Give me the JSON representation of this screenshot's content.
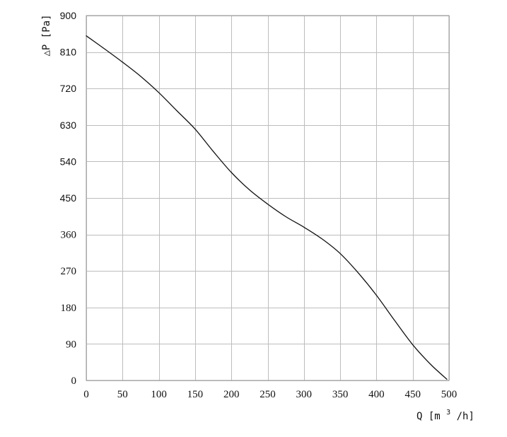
{
  "chart_data": {
    "type": "line",
    "title": "",
    "xlabel": "Q [m³/h]",
    "ylabel": "△P [Pa]",
    "xlabel_parts": {
      "prefix": "Q [m",
      "superscript": "3",
      "suffix": "/h]"
    },
    "xlim": [
      0,
      500
    ],
    "ylim": [
      0,
      900
    ],
    "x_ticks": [
      0,
      50,
      100,
      150,
      200,
      250,
      300,
      350,
      400,
      450,
      500
    ],
    "y_ticks": [
      0,
      90,
      180,
      270,
      360,
      450,
      540,
      630,
      720,
      810,
      900
    ],
    "x_tick_labels": [
      "0",
      "50",
      "100",
      "150",
      "200",
      "250",
      "300",
      "350",
      "400",
      "450",
      "500"
    ],
    "y_tick_labels": [
      "0",
      "90",
      "180",
      "270",
      "360",
      "450",
      "540",
      "630",
      "720",
      "810",
      "900"
    ],
    "grid": true,
    "legend": "none",
    "series": [
      {
        "color": "#111111",
        "x": [
          0,
          25,
          50,
          75,
          100,
          125,
          150,
          175,
          200,
          225,
          250,
          275,
          300,
          325,
          350,
          375,
          400,
          425,
          450,
          475,
          497
        ],
        "y": [
          850,
          818,
          785,
          750,
          710,
          665,
          620,
          565,
          513,
          470,
          435,
          404,
          378,
          349,
          313,
          265,
          210,
          148,
          88,
          39,
          3
        ]
      }
    ]
  }
}
